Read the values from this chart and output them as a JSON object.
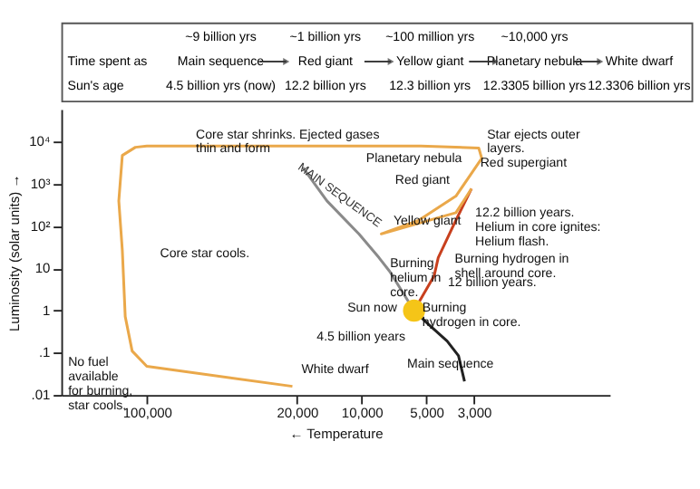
{
  "chart_data": [
    {
      "type": "other",
      "annotations": [
        "~9 billion yrs",
        "~1 billion yrs",
        "~100 million yrs",
        "~10,000 yrs",
        "Time spent as",
        "Main sequence",
        "Red giant",
        "Yellow giant",
        "Planetary nebula",
        "White dwarf",
        "Sun's age",
        "4.5 billion yrs (now)",
        "12.2 billion yrs",
        "12.3 billion yrs",
        "12.3305 billion yrs",
        "12.3306 billion yrs"
      ]
    },
    {
      "type": "line",
      "xlabel": "← Temperature",
      "ylabel": "Luminosity (solar units) →",
      "log": "xy",
      "xlim": [
        250000,
        700
      ],
      "ylim": [
        0.01,
        60000
      ],
      "xticks": [
        {
          "value": 100000,
          "label": "100,000"
        },
        {
          "value": 20000,
          "label": "20,000"
        },
        {
          "value": 10000,
          "label": "10,000"
        },
        {
          "value": 5000,
          "label": "5,000"
        },
        {
          "value": 3000,
          "label": "3,000"
        }
      ],
      "yticks": [
        {
          "value": 0.01,
          "label": ".01"
        },
        {
          "value": 0.1,
          "label": ".1"
        },
        1,
        10,
        {
          "value": 100,
          "label": "10²"
        },
        {
          "value": 1000,
          "label": "10³"
        },
        {
          "value": 10000,
          "label": "10⁴"
        }
      ],
      "series": [
        {
          "name": "MAIN SEQUENCE",
          "color": "#8a8a8a",
          "x": [
            18800,
            14500,
            10300,
            8300,
            7400,
            5700
          ],
          "values": [
            2500,
            400,
            66,
            18,
            8.5,
            1
          ]
        },
        {
          "color": "#222222",
          "x": [
            5700,
            4900,
            4000,
            3540,
            3320
          ],
          "values": [
            1,
            0.48,
            0.19,
            0.085,
            0.021
          ]
        },
        {
          "color": "#c8401e",
          "x": [
            5700,
            4600,
            4400,
            3640,
            3080
          ],
          "values": [
            1,
            6.6,
            18,
            140,
            780
          ]
        },
        {
          "color": "#eaa84a",
          "x": [
            3080,
            3640,
            8100,
            5400,
            3640,
            2760,
            2850,
            5300,
            20000,
            100000,
            113000,
            130000,
            135000,
            130000,
            126000,
            117000,
            100000,
            21000
          ],
          "values": [
            780,
            210,
            66,
            140,
            520,
            4100,
            7200,
            8000,
            8000,
            8000,
            7500,
            4800,
            400,
            27,
            0.72,
            0.11,
            0.048,
            0.016
          ]
        },
        {
          "type": "scatter",
          "marker": "circle",
          "color": "#f5c518",
          "x": [
            5700
          ],
          "values": [
            1
          ]
        }
      ],
      "annotations": [
        "Core star shrinks. Ejected gases\nthin and form",
        "Planetary nebula",
        "Star ejects outer\nlayers.",
        "Red supergiant",
        "12.2 billion years.\nHelium in core ignites:\nHelium flash.",
        "Red giant",
        "Yellow giant",
        "Burning\nhelium in\ncore.",
        "Burning hydrogen in\nshell around core.",
        "12 billion years.",
        "Burning\nhydrogen in core.",
        "Sun now",
        "4.5 billion years",
        "Main sequence",
        "Core star cools.",
        "No fuel\navailable\nfor burning,\nstar cools.",
        "White dwarf"
      ]
    }
  ]
}
